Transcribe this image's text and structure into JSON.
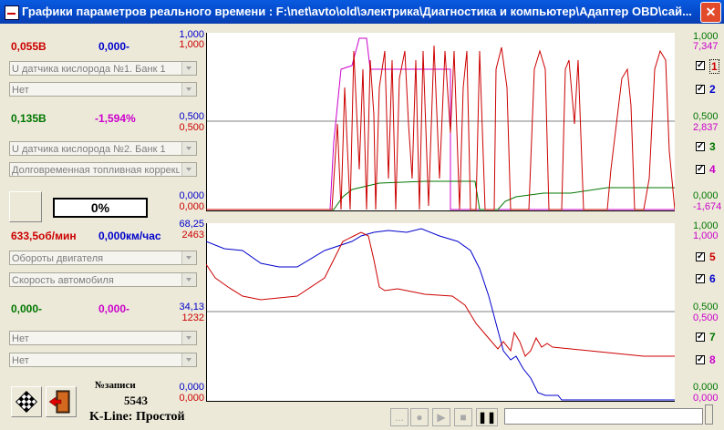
{
  "window": {
    "title": "Графики параметров реального времени : F:\\net\\avto\\old\\электрика\\Диагностика и компьютер\\Адаптер OBD\\сай...",
    "close": "✕"
  },
  "colors": {
    "red": "#cc0000",
    "blue": "#0000cc",
    "green": "#007700",
    "magenta": "#cc00cc",
    "grid": "#808080"
  },
  "groups": [
    {
      "val_a": "0,055В",
      "val_b": "0,000-",
      "combo1": "U датчика кислорода №1. Банк 1",
      "combo2": "Нет"
    },
    {
      "val_a": "0,135В",
      "val_b": "-1,594%",
      "combo1": "U датчика кислорода №2. Банк 1",
      "combo2": "Долговременная топливная коррекция"
    },
    {
      "val_a": "633,5об/мин",
      "val_b": "0,000км/час",
      "combo1": "Обороты двигателя",
      "combo2": "Скорость автомобиля"
    },
    {
      "val_a": "0,000-",
      "val_b": "0,000-",
      "combo1": "Нет",
      "combo2": "Нет"
    }
  ],
  "progress": "0%",
  "records": {
    "label": "№записи",
    "value": "5543"
  },
  "kline": "K-Line: Простой",
  "top_chart": {
    "left_axis": [
      {
        "t": "1,000",
        "c": "blue"
      },
      {
        "t": "1,000",
        "c": "red"
      },
      {
        "t": "0,500",
        "c": "blue"
      },
      {
        "t": "0,500",
        "c": "red"
      },
      {
        "t": "0,000",
        "c": "blue"
      },
      {
        "t": "0,000",
        "c": "red"
      }
    ],
    "right_axis": [
      {
        "t": "1,000",
        "c": "green"
      },
      {
        "t": "7,347",
        "c": "magenta"
      },
      {
        "t": "0,500",
        "c": "green"
      },
      {
        "t": "2,837",
        "c": "magenta"
      },
      {
        "t": "0,000",
        "c": "green"
      },
      {
        "t": "-1,674",
        "c": "magenta"
      }
    ],
    "checkboxes": [
      {
        "n": "1",
        "c": "red"
      },
      {
        "n": "2",
        "c": "blue"
      },
      {
        "n": "3",
        "c": "green"
      },
      {
        "n": "4",
        "c": "magenta"
      }
    ]
  },
  "bottom_chart": {
    "left_axis": [
      {
        "t": "68,25",
        "c": "blue"
      },
      {
        "t": "2463",
        "c": "red"
      },
      {
        "t": "34,13",
        "c": "blue"
      },
      {
        "t": "1232",
        "c": "red"
      },
      {
        "t": "0,000",
        "c": "blue"
      },
      {
        "t": "0,000",
        "c": "red"
      }
    ],
    "right_axis": [
      {
        "t": "1,000",
        "c": "green"
      },
      {
        "t": "1,000",
        "c": "magenta"
      },
      {
        "t": "0,500",
        "c": "green"
      },
      {
        "t": "0,500",
        "c": "magenta"
      },
      {
        "t": "0,000",
        "c": "green"
      },
      {
        "t": "0,000",
        "c": "magenta"
      }
    ],
    "checkboxes": [
      {
        "n": "5",
        "c": "red"
      },
      {
        "n": "6",
        "c": "blue"
      },
      {
        "n": "7",
        "c": "green"
      },
      {
        "n": "8",
        "c": "magenta"
      }
    ]
  },
  "playback": {
    "btn1": "...",
    "btn2": "●",
    "btn3": "▶",
    "btn4": "■",
    "btn5": "❚❚"
  },
  "checkbox_mark": "✓"
}
